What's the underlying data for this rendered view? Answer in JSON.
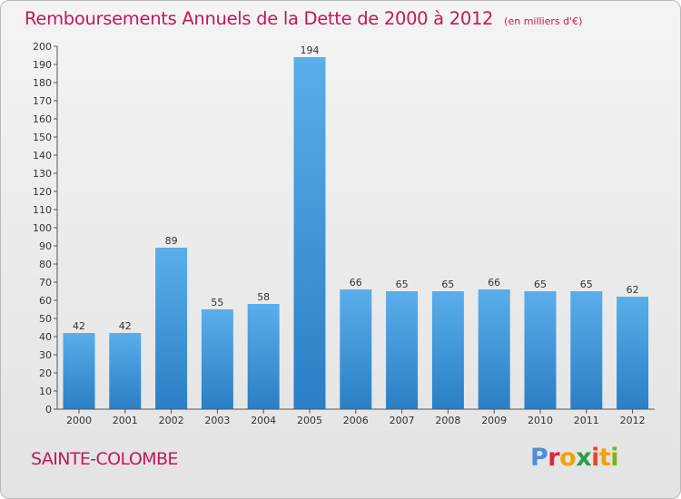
{
  "header": {
    "title": "Remboursements Annuels de la Dette de 2000 à 2012",
    "unit": "(en milliers d'€)"
  },
  "footer": {
    "city": "SAINTE-COLOMBE",
    "logo_text": "Proxiti"
  },
  "colors": {
    "accent": "#c2185b",
    "bar_light": "#5aaeea",
    "bar_dark": "#2a7fc5",
    "axis": "#555555"
  },
  "chart_data": {
    "type": "bar",
    "title": "Remboursements Annuels de la Dette de 2000 à 2012",
    "subtitle": "(en milliers d'€)",
    "xlabel": "",
    "ylabel": "",
    "categories": [
      "2000",
      "2001",
      "2002",
      "2003",
      "2004",
      "2005",
      "2006",
      "2007",
      "2008",
      "2009",
      "2010",
      "2011",
      "2012"
    ],
    "values": [
      42,
      42,
      89,
      55,
      58,
      194,
      66,
      65,
      65,
      66,
      65,
      65,
      62
    ],
    "ylim": [
      0,
      200
    ],
    "ytick_step": 10,
    "grid": false,
    "legend": "none",
    "data_labels": true
  }
}
